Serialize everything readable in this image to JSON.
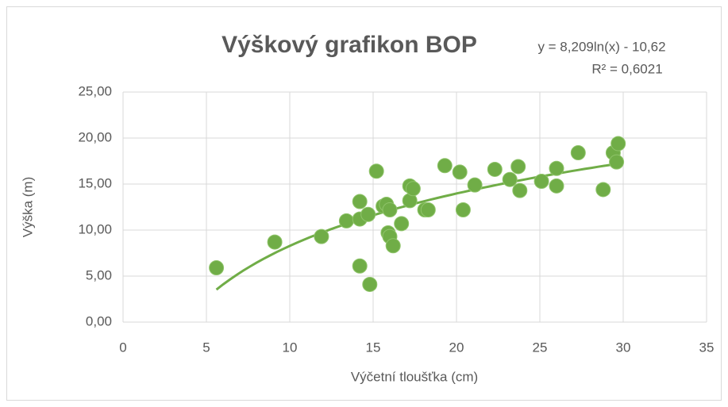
{
  "chart_data": {
    "type": "scatter",
    "title": "Výškový grafikon BOP",
    "x_label": "Výčetní tloušťka (cm)",
    "y_label": "Výška (m)",
    "color": "#70ad47",
    "x": [
      5.6,
      9.1,
      11.9,
      13.4,
      14.2,
      14.2,
      14.7,
      14.2,
      14.8,
      15.2,
      15.6,
      15.8,
      16.0,
      15.9,
      16.0,
      16.2,
      16.7,
      17.2,
      17.2,
      17.4,
      18.1,
      18.3,
      19.3,
      20.2,
      20.4,
      21.1,
      22.3,
      23.2,
      23.7,
      23.8,
      25.1,
      26.0,
      26.0,
      27.3,
      28.8,
      29.4,
      29.7,
      29.6
    ],
    "values": [
      5.9,
      8.7,
      9.3,
      11.0,
      13.1,
      11.2,
      11.7,
      6.1,
      4.1,
      16.4,
      12.6,
      12.8,
      12.2,
      9.7,
      9.3,
      8.3,
      10.7,
      13.2,
      14.8,
      14.5,
      12.2,
      12.2,
      17.0,
      16.3,
      12.2,
      14.9,
      16.6,
      15.5,
      16.9,
      14.3,
      15.3,
      16.7,
      14.8,
      18.4,
      14.4,
      18.4,
      19.4,
      17.4
    ],
    "xlim": [
      0,
      35
    ],
    "xticks": [
      0,
      5,
      10,
      15,
      20,
      25,
      30,
      35
    ],
    "ylim": [
      0,
      25
    ],
    "yticks": [
      {
        "value": 0,
        "label": "0,00"
      },
      {
        "value": 5,
        "label": "5,00"
      },
      {
        "value": 10,
        "label": "10,00"
      },
      {
        "value": 15,
        "label": "15,00"
      },
      {
        "value": 20,
        "label": "20,00"
      },
      {
        "value": 25,
        "label": "25,00"
      }
    ],
    "grid": true,
    "trendline": {
      "equation": "y = 8,209ln(x) - 10,62",
      "r_squared": "R² = 0,6021",
      "type": "log",
      "coefficients": [
        8.209,
        -10.62
      ],
      "x_range": [
        5.6,
        29.7
      ],
      "color": "#70ad47"
    }
  }
}
